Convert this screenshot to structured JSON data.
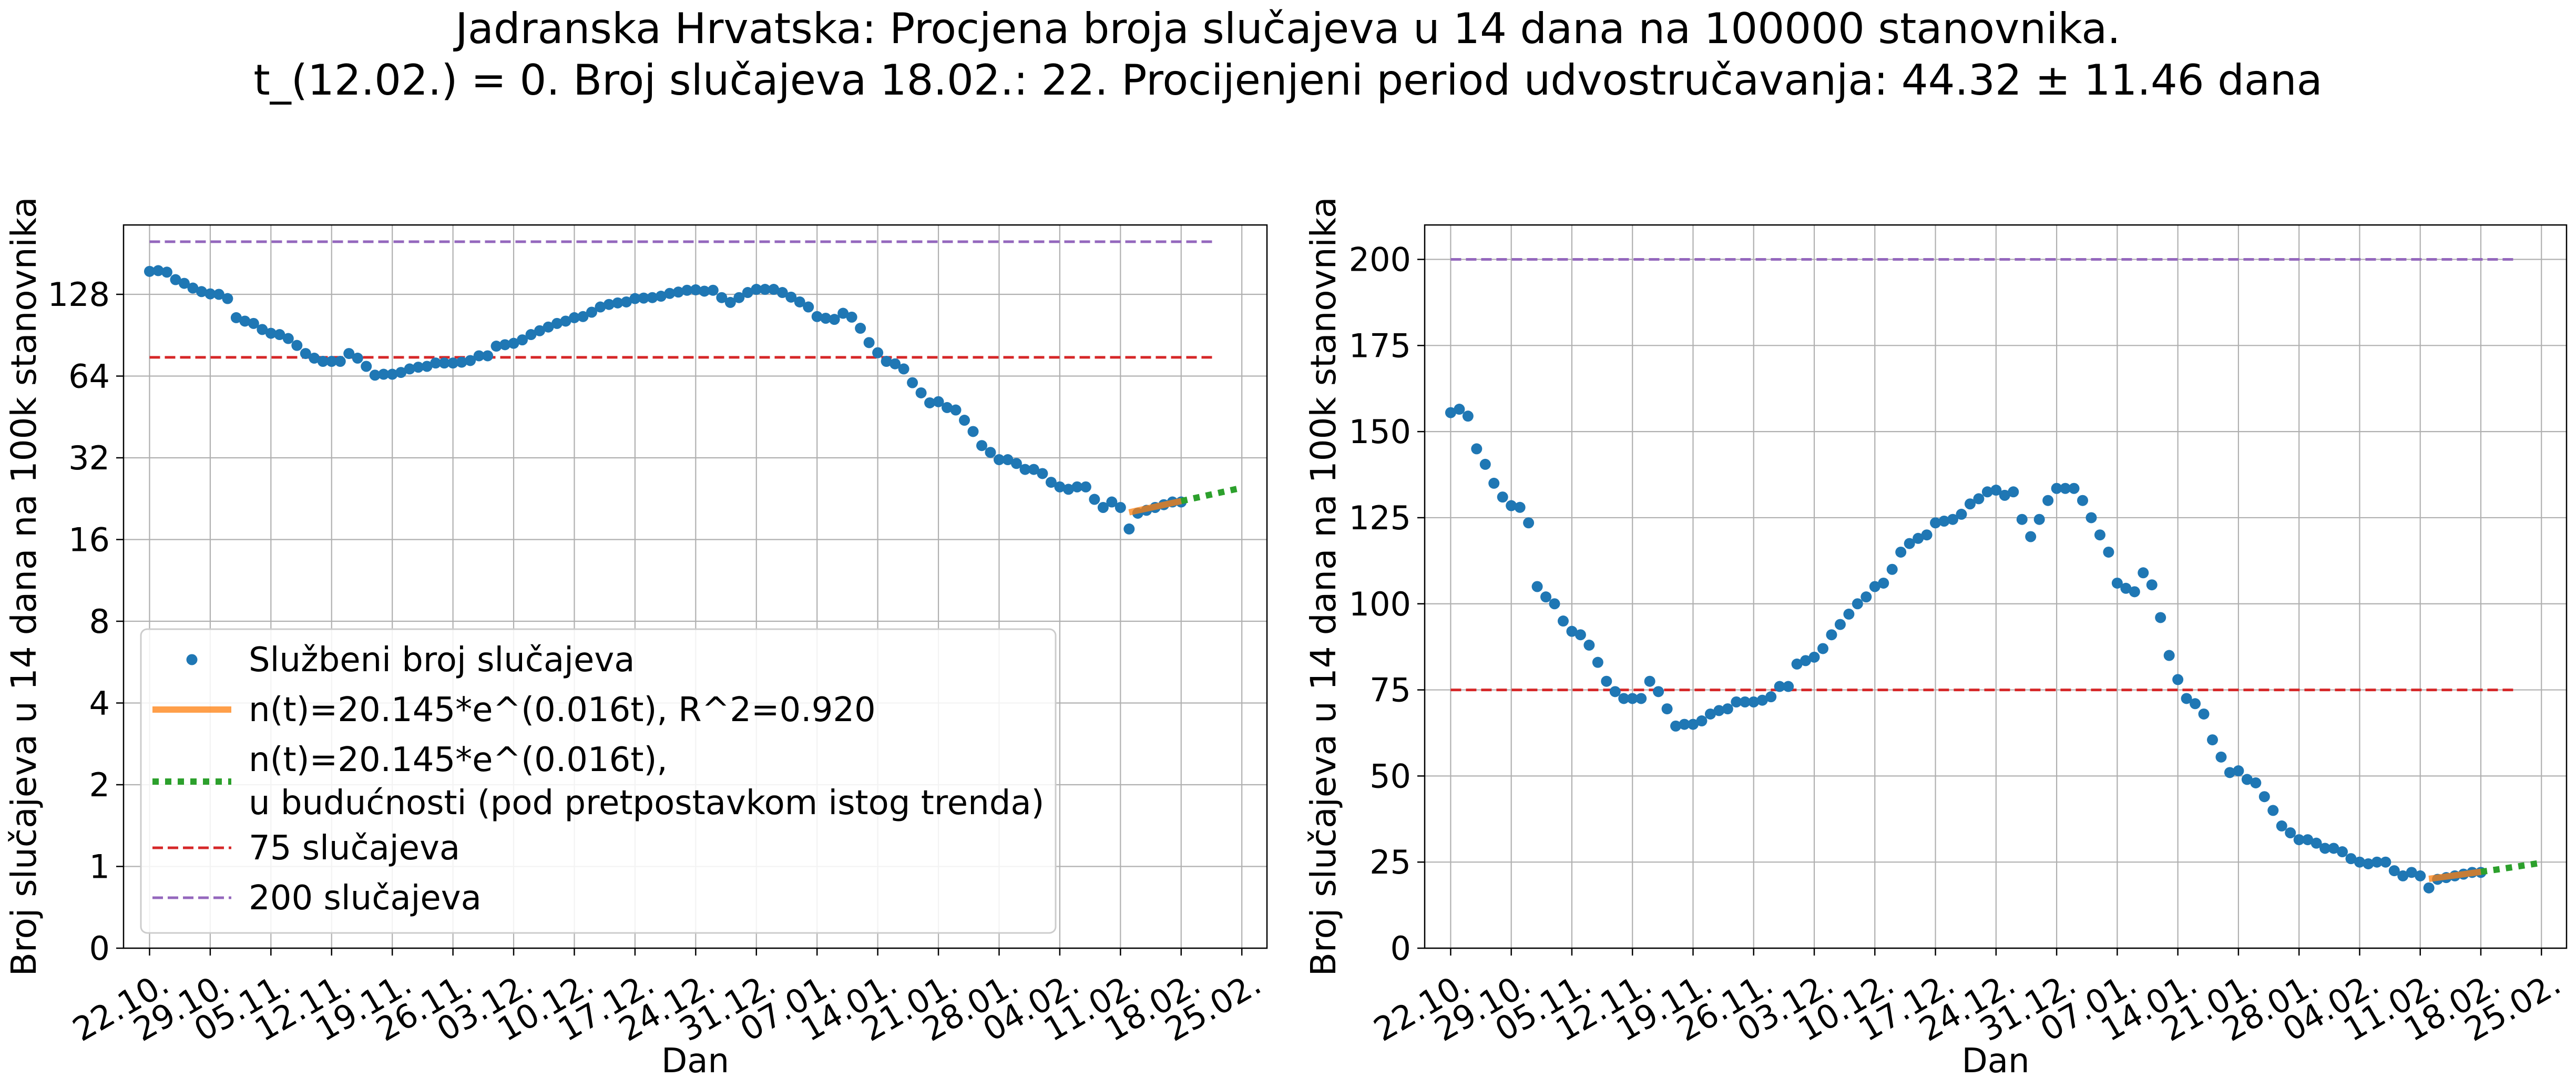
{
  "title_line1": "Jadranska Hrvatska: Procjena broja slučajeva u 14 dana na 100000 stanovnika.",
  "title_line2": "t_(12.02.) = 0. Broj slučajeva 18.02.: 22. Procijenjeni period udvostručavanja: 44.32 ± 11.46 dana",
  "colors": {
    "points": "#1f77b4",
    "fit": "#ff7f0e",
    "forecast": "#2ca02c",
    "line75": "#d62728",
    "line200": "#9467bd",
    "grid": "#b0b0b0"
  },
  "chart_data": [
    {
      "type": "scatter",
      "yscale": "log2",
      "xlabel": "Dan",
      "ylabel": "Broj slučajeva u 14 dana na 100k stanovnika",
      "x_tick_labels": [
        "22.10.",
        "29.10.",
        "05.11.",
        "12.11.",
        "19.11.",
        "26.11.",
        "03.12.",
        "10.12.",
        "17.12.",
        "24.12.",
        "31.12.",
        "07.01.",
        "14.01.",
        "21.01.",
        "28.01.",
        "04.02.",
        "11.02.",
        "18.02.",
        "25.02."
      ],
      "y_tick_labels": [
        "0",
        "1",
        "2",
        "4",
        "8",
        "16",
        "32",
        "64",
        "128"
      ],
      "legend_position": "lower-left",
      "legend": [
        {
          "kind": "points",
          "label": "Službeni broj slučajeva"
        },
        {
          "kind": "fit",
          "label": "n(t)=20.145*e^(0.016t), R^2=0.920"
        },
        {
          "kind": "forecast",
          "label": "n(t)=20.145*e^(0.016t),",
          "label2": "u budućnosti (pod pretpostavkom istog trenda)"
        },
        {
          "kind": "line75",
          "label": "75 slučajeva"
        },
        {
          "kind": "line200",
          "label": "200 slučajeva"
        }
      ]
    },
    {
      "type": "scatter",
      "yscale": "linear",
      "xlabel": "Dan",
      "ylabel": "Broj slučajeva u 14 dana na 100k stanovnika",
      "ylim": [
        0,
        210
      ],
      "x_tick_labels": [
        "22.10.",
        "29.10.",
        "05.11.",
        "12.11.",
        "19.11.",
        "26.11.",
        "03.12.",
        "10.12.",
        "17.12.",
        "24.12.",
        "31.12.",
        "07.01.",
        "14.01.",
        "21.01.",
        "28.01.",
        "04.02.",
        "11.02.",
        "18.02.",
        "25.02."
      ],
      "y_tick_labels": [
        "0",
        "25",
        "50",
        "75",
        "100",
        "125",
        "150",
        "175",
        "200"
      ]
    }
  ],
  "series": {
    "x_start": "22.10.",
    "official_cases": [
      155.5,
      156.5,
      154.5,
      145,
      140.5,
      135,
      131,
      128.5,
      128,
      123.5,
      105,
      102,
      100,
      95,
      92,
      91,
      88,
      83,
      77.5,
      74.5,
      72.5,
      72.5,
      72.5,
      77.5,
      74.5,
      69.5,
      64.5,
      65,
      65,
      66,
      68,
      69,
      69.5,
      71.5,
      71.5,
      71.5,
      72,
      73,
      76,
      76,
      82.5,
      83.5,
      84.5,
      87,
      91,
      94,
      97,
      100,
      102,
      105,
      106,
      110,
      115,
      117.5,
      119,
      120,
      123.5,
      124,
      124.5,
      126,
      129,
      130.5,
      132.5,
      133,
      131.5,
      132.5,
      124.5,
      119.5,
      124.5,
      130,
      133.5,
      133.5,
      133.5,
      130,
      125,
      120,
      115,
      106,
      104.5,
      103.5,
      109,
      105.5,
      96,
      85,
      78,
      72.5,
      71,
      68,
      60.5,
      55.5,
      51,
      51.5,
      49,
      48,
      44,
      40,
      35.5,
      33.5,
      31.5,
      31.5,
      30.5,
      29,
      29,
      28,
      26,
      25,
      24.5,
      25,
      25,
      22.5,
      21,
      22,
      21,
      17.5,
      20,
      20.5,
      21,
      21.5,
      22,
      22
    ],
    "fit": {
      "a": 20.145,
      "b": 0.016,
      "t0_index": 113,
      "t_end_index": 119,
      "forecast_end_index": 126
    },
    "line75": 75,
    "line200": 200
  }
}
